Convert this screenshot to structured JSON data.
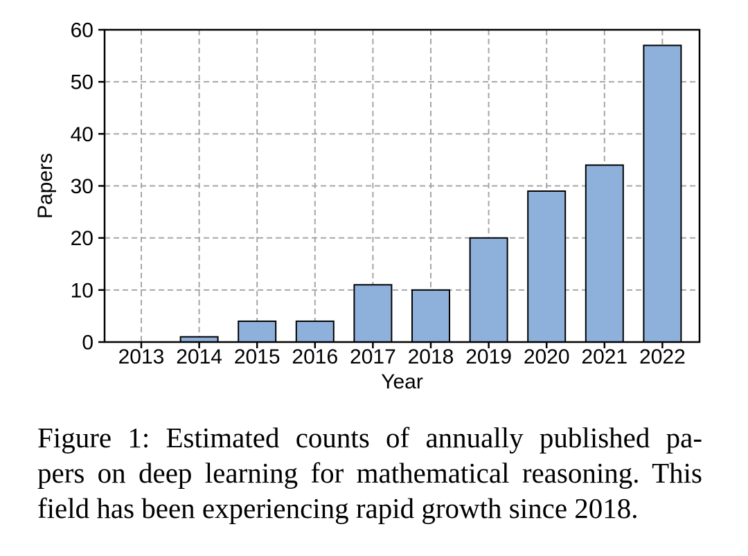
{
  "chart_data": {
    "type": "bar",
    "categories": [
      "2013",
      "2014",
      "2015",
      "2016",
      "2017",
      "2018",
      "2019",
      "2020",
      "2021",
      "2022"
    ],
    "values": [
      0,
      1,
      4,
      4,
      11,
      10,
      20,
      29,
      34,
      57
    ],
    "xlabel": "Year",
    "ylabel": "Papers",
    "ylim": [
      0,
      60
    ],
    "yticks": [
      0,
      10,
      20,
      30,
      40,
      50,
      60
    ],
    "grid": "dashed, both axes",
    "legend": "none",
    "bar_color": "#8EB1DC",
    "bar_edge_color": "#000000",
    "grid_color": "#a6a6a6"
  },
  "figure": {
    "caption_lines": [
      "Figure 1: Estimated counts of annually published pa-",
      "pers on deep learning for mathematical reasoning. This",
      "field has been experiencing rapid growth since 2018."
    ]
  }
}
